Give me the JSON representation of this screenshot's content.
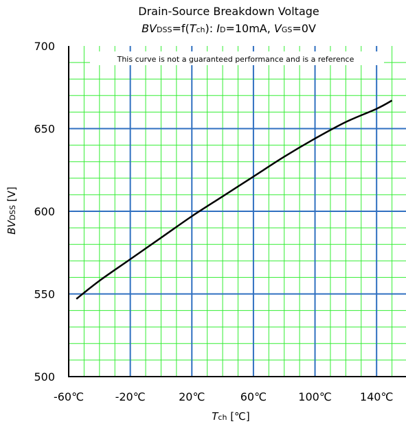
{
  "chart_data": {
    "type": "line",
    "title": "Drain-Source Breakdown Voltage",
    "subtitle": {
      "p1": "BV",
      "p2": "DSS",
      "p3": "=f(",
      "p4": "T",
      "p5": "ch",
      "p6": "): ",
      "p7": "I",
      "p8": "D",
      "p9": "=10mA, ",
      "p10": "V",
      "p11": "GS",
      "p12": "=0V"
    },
    "annotation": "This curve is not a guaranteed performance and is a reference",
    "xlabel": {
      "main": "T",
      "sub": "ch",
      "unit": " [℃]"
    },
    "ylabel": {
      "main": "BV",
      "sub": "DSS",
      "unit": " [V]"
    },
    "xlim": [
      -60,
      160
    ],
    "ylim": [
      500,
      700
    ],
    "x_major_ticks": [
      -60,
      -20,
      20,
      60,
      100,
      140
    ],
    "x_tick_labels": [
      "-60℃",
      "-20℃",
      "20℃",
      "60℃",
      "100℃",
      "140℃"
    ],
    "y_major_ticks": [
      500,
      550,
      600,
      650,
      700
    ],
    "y_tick_labels": [
      "500",
      "550",
      "600",
      "650",
      "700"
    ],
    "x_minor_step": 10,
    "y_minor_step": 10,
    "x_major_grid": [
      -20,
      20,
      60,
      100,
      140
    ],
    "y_major_grid": [
      550,
      600,
      650
    ],
    "grid": true,
    "colors": {
      "minor_grid": "#33ee33",
      "major_grid": "#2f6fc0",
      "curve": "#000000",
      "axes": "#000000"
    },
    "series": [
      {
        "x": [
          -55,
          -40,
          -20,
          0,
          20,
          40,
          60,
          80,
          100,
          120,
          140,
          150
        ],
        "y": [
          547,
          558,
          571,
          584,
          597,
          609,
          621,
          633,
          644,
          654,
          662,
          667
        ]
      }
    ]
  }
}
